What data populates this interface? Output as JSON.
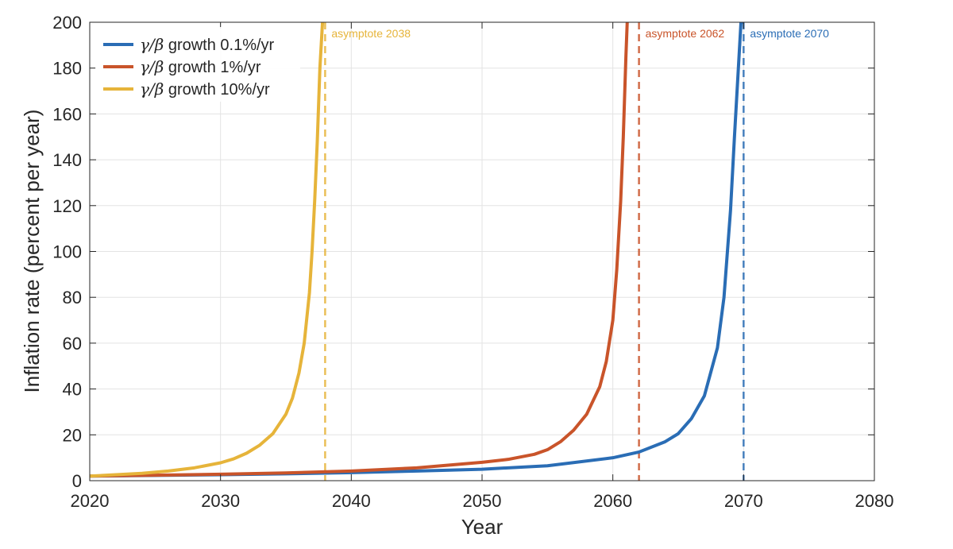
{
  "chart_data": {
    "type": "line",
    "xlabel": "Year",
    "ylabel": "Inflation rate (percent per year)",
    "xlim": [
      2020,
      2080
    ],
    "ylim": [
      0,
      200
    ],
    "xticks": [
      2020,
      2030,
      2040,
      2050,
      2060,
      2070,
      2080
    ],
    "yticks": [
      0,
      20,
      40,
      60,
      80,
      100,
      120,
      140,
      160,
      180,
      200
    ],
    "grid": true,
    "legend_position": "top-left",
    "series": [
      {
        "name_symbol": "γ/β",
        "name_text": " growth 0.1%/yr",
        "color": "#2a6db5",
        "x": [
          2020,
          2025,
          2030,
          2035,
          2040,
          2045,
          2050,
          2055,
          2060,
          2062,
          2064,
          2065,
          2066,
          2067,
          2068,
          2068.5,
          2069,
          2069.3,
          2069.6,
          2069.8,
          2069.9
        ],
        "y": [
          2,
          2.3,
          2.6,
          3,
          3.5,
          4.2,
          5,
          6.5,
          10,
          12.5,
          17,
          20.5,
          27,
          37,
          58,
          80,
          118,
          150,
          180,
          200,
          200
        ]
      },
      {
        "name_symbol": "γ/β",
        "name_text": " growth 1%/yr",
        "color": "#c9542a",
        "x": [
          2020,
          2025,
          2030,
          2035,
          2040,
          2045,
          2050,
          2052,
          2054,
          2055,
          2056,
          2057,
          2058,
          2059,
          2059.5,
          2060,
          2060.3,
          2060.6,
          2060.8,
          2061,
          2061.1
        ],
        "y": [
          2,
          2.4,
          2.8,
          3.4,
          4.2,
          5.6,
          8,
          9.3,
          11.5,
          13.5,
          17,
          22,
          29,
          41,
          52,
          70,
          92,
          122,
          150,
          185,
          200
        ]
      },
      {
        "name_symbol": "γ/β",
        "name_text": " growth 10%/yr",
        "color": "#e6b43a",
        "x": [
          2020,
          2022,
          2024,
          2026,
          2028,
          2030,
          2031,
          2032,
          2033,
          2034,
          2035,
          2035.5,
          2036,
          2036.4,
          2036.8,
          2037,
          2037.2,
          2037.4,
          2037.6,
          2037.8
        ],
        "y": [
          2,
          2.6,
          3.2,
          4.2,
          5.6,
          7.8,
          9.5,
          12,
          15.5,
          20.5,
          29,
          36,
          47,
          60,
          82,
          100,
          122,
          148,
          180,
          200
        ]
      }
    ],
    "asymptotes": [
      {
        "x": 2038,
        "label": "asymptote 2038",
        "color": "#e6b43a"
      },
      {
        "x": 2062,
        "label": "asymptote 2062",
        "color": "#c9542a"
      },
      {
        "x": 2070,
        "label": "asymptote 2070",
        "color": "#2a6db5"
      }
    ]
  }
}
